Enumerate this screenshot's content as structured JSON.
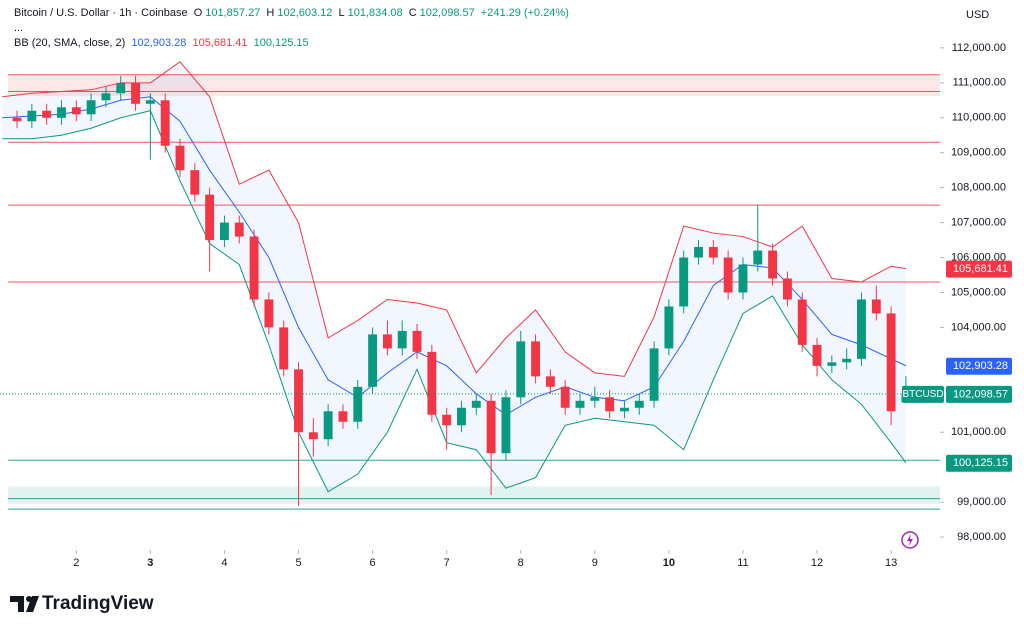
{
  "header": {
    "title": "Bitcoin / U.S. Dollar · 1h · Coinbase",
    "ohlc": [
      {
        "label": "O",
        "value": "101,857.27"
      },
      {
        "label": "H",
        "value": "102,603.12"
      },
      {
        "label": "L",
        "value": "101,834.08"
      },
      {
        "label": "C",
        "value": "102,098.57"
      }
    ],
    "change": "+241.29 (+0.24%)",
    "more": "...",
    "indicator": "BB (20, SMA, close, 2)",
    "indicator_values": [
      "102,903.28",
      "105,681.41",
      "100,125.15"
    ]
  },
  "currency": "USD",
  "brand": "TradingView",
  "chart_data": {
    "type": "candlestick",
    "symbol": "BTCUSD",
    "up_color": "#089981",
    "down_color": "#f23645",
    "x": [
      1.2,
      1.4,
      1.6,
      1.8,
      2.0,
      2.2,
      2.4,
      2.6,
      2.8,
      3.0,
      3.2,
      3.4,
      3.6,
      3.8,
      4.0,
      4.2,
      4.4,
      4.6,
      4.8,
      5.0,
      5.2,
      5.4,
      5.6,
      5.8,
      6.0,
      6.2,
      6.4,
      6.6,
      6.8,
      7.0,
      7.2,
      7.4,
      7.6,
      7.8,
      8.0,
      8.2,
      8.4,
      8.6,
      8.8,
      9.0,
      9.2,
      9.4,
      9.6,
      9.8,
      10.0,
      10.2,
      10.4,
      10.6,
      10.8,
      11.0,
      11.2,
      11.4,
      11.6,
      11.8,
      12.0,
      12.2,
      12.4,
      12.6,
      12.8,
      13.0,
      13.2
    ],
    "open": [
      110000,
      109900,
      110200,
      110000,
      110300,
      110100,
      110500,
      110700,
      111000,
      110400,
      110500,
      109200,
      108500,
      107800,
      106500,
      107000,
      106600,
      104800,
      104000,
      102800,
      101000,
      100800,
      101600,
      101300,
      102300,
      103800,
      103400,
      103900,
      103300,
      101500,
      101200,
      101700,
      101900,
      100400,
      102000,
      103600,
      102600,
      102300,
      101700,
      101900,
      102000,
      101600,
      101700,
      101900,
      103400,
      104600,
      106000,
      106300,
      106000,
      105000,
      105800,
      106200,
      105400,
      104800,
      103500,
      102900,
      103000,
      103100,
      104800,
      104400,
      101857.27
    ],
    "high": [
      110200,
      110400,
      110400,
      110500,
      110500,
      110700,
      110900,
      111200,
      111200,
      110700,
      110700,
      109400,
      108700,
      108000,
      107200,
      107200,
      106800,
      105000,
      104200,
      103000,
      101400,
      101800,
      101800,
      102500,
      104000,
      104200,
      104200,
      104100,
      103500,
      101700,
      101900,
      102100,
      102100,
      102200,
      103900,
      103800,
      102800,
      102500,
      102100,
      102300,
      102200,
      101900,
      102100,
      103600,
      104800,
      106200,
      106500,
      106500,
      106200,
      106000,
      107500,
      106400,
      105600,
      105000,
      103700,
      103200,
      103400,
      105000,
      105200,
      104600,
      102603.12
    ],
    "low": [
      109700,
      109700,
      109800,
      109800,
      109900,
      109900,
      110300,
      110500,
      110200,
      108800,
      109000,
      108300,
      107600,
      105600,
      106300,
      106400,
      104600,
      103800,
      102600,
      98900,
      100300,
      100600,
      101100,
      101100,
      102100,
      103200,
      103200,
      103100,
      101300,
      100500,
      101000,
      101500,
      99200,
      100200,
      101800,
      102400,
      102100,
      101500,
      101500,
      101700,
      101400,
      101400,
      101500,
      101700,
      103200,
      104400,
      105800,
      105800,
      104800,
      104800,
      105600,
      105200,
      104600,
      103300,
      102600,
      102700,
      102800,
      102900,
      104200,
      101200,
      101834.08
    ],
    "close": [
      109900,
      110200,
      110000,
      110300,
      110100,
      110500,
      110700,
      111000,
      110400,
      110500,
      109200,
      108500,
      107800,
      106500,
      107000,
      106600,
      104800,
      104000,
      102800,
      101000,
      100800,
      101600,
      101300,
      102300,
      103800,
      103400,
      103900,
      103300,
      101500,
      101200,
      101700,
      101900,
      100400,
      102000,
      103600,
      102600,
      102300,
      101700,
      101900,
      102000,
      101600,
      101700,
      101900,
      103400,
      104600,
      106000,
      106300,
      106000,
      105000,
      105800,
      106200,
      105400,
      104800,
      103500,
      102900,
      103000,
      103100,
      104800,
      104400,
      101600,
      102098.57
    ],
    "band_x": [
      1.0,
      1.4,
      1.8,
      2.2,
      2.6,
      3.0,
      3.4,
      3.8,
      4.2,
      4.6,
      5.0,
      5.4,
      5.8,
      6.2,
      6.6,
      7.0,
      7.4,
      7.8,
      8.2,
      8.6,
      9.0,
      9.4,
      9.8,
      10.2,
      10.6,
      11.0,
      11.4,
      11.8,
      12.2,
      12.6,
      13.0,
      13.2
    ],
    "bands": [
      {
        "color": "#f23645",
        "values": [
          110600,
          110700,
          110750,
          110800,
          111000,
          111000,
          111600,
          110600,
          108100,
          108500,
          107000,
          103700,
          104200,
          104800,
          104700,
          104500,
          102700,
          103700,
          104500,
          103300,
          102700,
          102600,
          104300,
          106900,
          106700,
          106600,
          106300,
          106900,
          105400,
          105300,
          105750,
          105681.41
        ]
      },
      {
        "color": "#2962ff",
        "values": [
          110000,
          110050,
          110100,
          110250,
          110500,
          110600,
          109900,
          108500,
          107300,
          106000,
          104000,
          102500,
          102000,
          102700,
          103300,
          102900,
          102100,
          101500,
          102000,
          102300,
          102000,
          101900,
          102300,
          103600,
          105200,
          105800,
          105700,
          104800,
          103800,
          103500,
          103100,
          102903.28
        ]
      },
      {
        "color": "#089981",
        "values": [
          109400,
          109400,
          109500,
          109700,
          110000,
          110200,
          108200,
          106400,
          105800,
          103500,
          101000,
          99300,
          99800,
          101000,
          102800,
          100700,
          100500,
          99400,
          99700,
          101200,
          101400,
          101300,
          101200,
          100500,
          102500,
          104400,
          104900,
          103500,
          102500,
          101800,
          100700,
          100125.15
        ]
      }
    ],
    "band_fill": "rgba(41,98,255,0.06)",
    "levels": [
      {
        "value": 111230,
        "color": "#f23645"
      },
      {
        "value": 110750,
        "color": "#f23645"
      },
      {
        "value": 109300,
        "color": "#f23645"
      },
      {
        "value": 107500,
        "color": "#f23645"
      },
      {
        "value": 105300,
        "color": "#f23645"
      },
      {
        "value": 100200,
        "color": "#089981"
      },
      {
        "value": 99100,
        "color": "#089981"
      },
      {
        "value": 98800,
        "color": "#089981"
      }
    ],
    "zones": [
      {
        "range": [
          110620,
          111230
        ],
        "color": "rgba(242,54,69,0.12)"
      },
      {
        "range": [
          98950,
          99450
        ],
        "color": "rgba(8,153,129,0.12)"
      }
    ],
    "price_labels": [
      {
        "value": 105681.41,
        "label": "105,681.41",
        "color": "#f23645"
      },
      {
        "value": 102903.28,
        "label": "102,903.28",
        "color": "#2962ff"
      },
      {
        "value": 102098.57,
        "label": "102,098.57",
        "color": "#089981"
      },
      {
        "value": 100125.15,
        "label": "100,125.15",
        "color": "#089981"
      }
    ],
    "xlim": [
      0.97,
      13.66
    ],
    "ylim": [
      97630,
      113370
    ],
    "xticks": [
      2,
      3,
      4,
      5,
      6,
      7,
      8,
      9,
      10,
      11,
      12,
      13
    ],
    "bold_xticks": [
      3,
      10
    ],
    "yticks": [
      {
        "value": 112000,
        "label": "112,000.00"
      },
      {
        "value": 111000,
        "label": "111,000.00"
      },
      {
        "value": 110000,
        "label": "110,000.00"
      },
      {
        "value": 109000,
        "label": "109,000.00"
      },
      {
        "value": 108000,
        "label": "108,000.00"
      },
      {
        "value": 107000,
        "label": "107,000.00"
      },
      {
        "value": 106000,
        "label": "106,000.00"
      },
      {
        "value": 105000,
        "label": "105,000.00"
      },
      {
        "value": 104000,
        "label": "104,000.00"
      },
      {
        "value": 101000,
        "label": "101,000.00"
      },
      {
        "value": 99000,
        "label": "99,000.00"
      },
      {
        "value": 98000,
        "label": "98,000.00"
      }
    ]
  }
}
